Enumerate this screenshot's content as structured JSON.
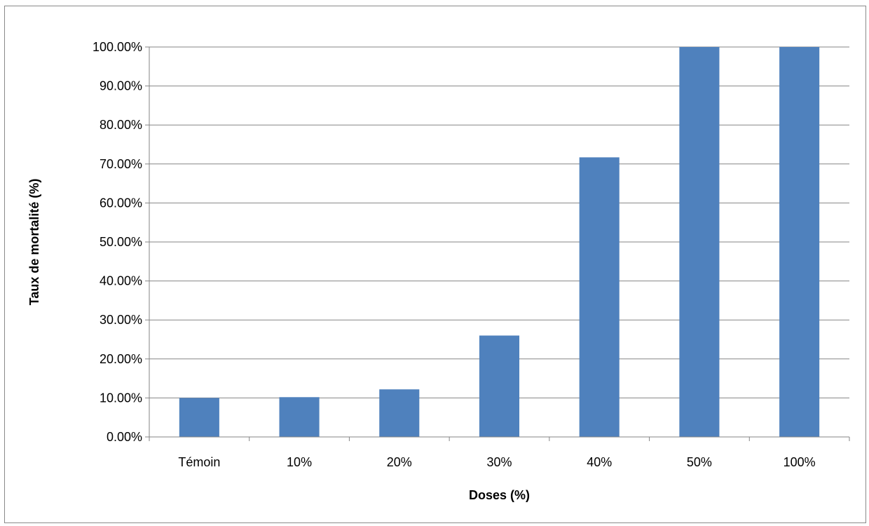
{
  "chart_data": {
    "type": "bar",
    "categories": [
      "Témoin",
      "10%",
      "20%",
      "30%",
      "40%",
      "50%",
      "100%"
    ],
    "values": [
      10.0,
      10.2,
      12.2,
      26.0,
      71.7,
      100.0,
      100.0
    ],
    "xlabel": "Doses (%)",
    "ylabel": "Taux de mortalité (%)",
    "ylim": [
      0,
      100
    ],
    "yticks": [
      0,
      10,
      20,
      30,
      40,
      50,
      60,
      70,
      80,
      90,
      100
    ],
    "ytick_labels": [
      "0.00%",
      "10.00%",
      "20.00%",
      "30.00%",
      "40.00%",
      "50.00%",
      "60.00%",
      "70.00%",
      "80.00%",
      "90.00%",
      "100.00%"
    ],
    "grid": true,
    "legend": "none",
    "bar_color": "#4F81BD",
    "grid_color": "#868686",
    "axis_color": "#868686"
  }
}
